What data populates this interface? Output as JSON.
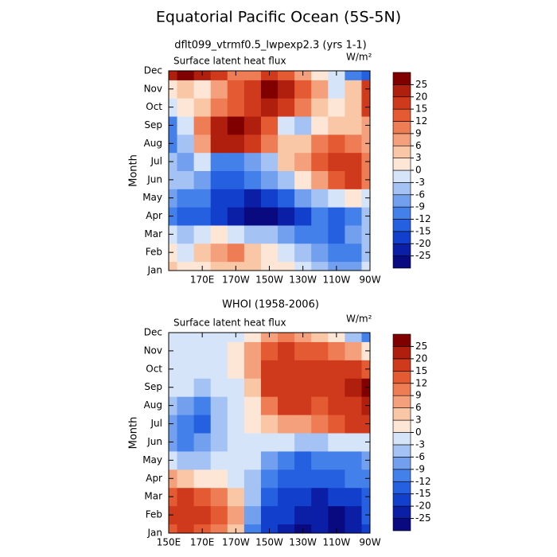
{
  "chart_data": [
    {
      "type": "heatmap",
      "title": "Equatorial Pacific Ocean (5S-5N)",
      "subtitle": "dflt099_vtrmf0.5_lwpexp2.3 (yrs 1-1)",
      "label": "Surface latent heat flux",
      "units": "W/m²",
      "ylabel": "Month",
      "categories": [
        "Jan",
        "Feb",
        "Mar",
        "Apr",
        "May",
        "Jun",
        "Jul",
        "Aug",
        "Sep",
        "Oct",
        "Nov",
        "Dec"
      ],
      "x": [
        150,
        160,
        170,
        180,
        190,
        200,
        210,
        220,
        230,
        240,
        250,
        260,
        270
      ],
      "xlim": [
        150,
        270
      ],
      "xticks": [
        {
          "value": 170,
          "label": "170E"
        },
        {
          "value": 190,
          "label": "170W"
        },
        {
          "value": 210,
          "label": "150W"
        },
        {
          "value": 230,
          "label": "130W"
        },
        {
          "value": 250,
          "label": "110W"
        },
        {
          "value": 270,
          "label": "90W"
        }
      ],
      "levels": [
        -25,
        -20,
        -15,
        -12,
        -9,
        -6,
        -3,
        0,
        3,
        6,
        9,
        12,
        15,
        20,
        25
      ],
      "colors": [
        "#0a0a80",
        "#0a1fa6",
        "#1240cc",
        "#2460e0",
        "#4480ea",
        "#72a0ee",
        "#a4c2f4",
        "#d6e4fa",
        "#fde6d6",
        "#f9c6a6",
        "#f4a07c",
        "#ee7c54",
        "#e45a32",
        "#d03a1c",
        "#b01e0e",
        "#800000"
      ],
      "z": [
        [
          3,
          0,
          2,
          3,
          5,
          3,
          2,
          0,
          -3,
          -6,
          -9,
          -9,
          -3
        ],
        [
          0,
          -3,
          3,
          6,
          9,
          3,
          0,
          -3,
          -6,
          -9,
          -12,
          -12,
          -6
        ],
        [
          -3,
          -6,
          -3,
          0,
          -3,
          -6,
          -6,
          -9,
          -12,
          -12,
          -15,
          -9,
          -6
        ],
        [
          -12,
          -15,
          -15,
          -18,
          -22,
          -26,
          -26,
          -24,
          -20,
          -12,
          -15,
          -12,
          -6
        ],
        [
          -9,
          -12,
          -12,
          -18,
          -20,
          -22,
          -20,
          -15,
          -9,
          -6,
          -3,
          0,
          -3
        ],
        [
          -6,
          -6,
          -9,
          -15,
          -15,
          -12,
          -9,
          -6,
          0,
          6,
          12,
          15,
          9
        ],
        [
          -6,
          -9,
          -3,
          -12,
          -12,
          -9,
          -6,
          3,
          6,
          12,
          15,
          15,
          9
        ],
        [
          -12,
          -6,
          6,
          20,
          22,
          15,
          9,
          3,
          3,
          9,
          12,
          9,
          6
        ],
        [
          -12,
          -3,
          9,
          22,
          26,
          20,
          12,
          -3,
          -6,
          0,
          3,
          3,
          6
        ],
        [
          -3,
          0,
          3,
          9,
          12,
          15,
          20,
          15,
          9,
          3,
          0,
          3,
          15
        ],
        [
          0,
          3,
          0,
          6,
          12,
          15,
          26,
          20,
          12,
          6,
          -3,
          3,
          15
        ],
        [
          24,
          26,
          20,
          15,
          9,
          9,
          15,
          12,
          6,
          0,
          -3,
          -12,
          -15
        ]
      ]
    },
    {
      "type": "heatmap",
      "subtitle": "WHOI (1958-2006)",
      "label": "Surface latent heat flux",
      "units": "W/m²",
      "ylabel": "Month",
      "categories": [
        "Jan",
        "Feb",
        "Mar",
        "Apr",
        "May",
        "Jun",
        "Jul",
        "Aug",
        "Sep",
        "Oct",
        "Nov",
        "Dec"
      ],
      "x": [
        150,
        160,
        170,
        180,
        190,
        200,
        210,
        220,
        230,
        240,
        250,
        260,
        270
      ],
      "xlim": [
        150,
        270
      ],
      "xticks": [
        {
          "value": 150,
          "label": "150E"
        },
        {
          "value": 170,
          "label": "170E"
        },
        {
          "value": 190,
          "label": "170W"
        },
        {
          "value": 210,
          "label": "150W"
        },
        {
          "value": 230,
          "label": "130W"
        },
        {
          "value": 250,
          "label": "110W"
        },
        {
          "value": 270,
          "label": "90W"
        }
      ],
      "levels": [
        -25,
        -20,
        -15,
        -12,
        -9,
        -6,
        -3,
        0,
        3,
        6,
        9,
        12,
        15,
        20,
        25
      ],
      "colors": [
        "#0a0a80",
        "#0a1fa6",
        "#1240cc",
        "#2460e0",
        "#4480ea",
        "#72a0ee",
        "#a4c2f4",
        "#d6e4fa",
        "#fde6d6",
        "#f9c6a6",
        "#f4a07c",
        "#ee7c54",
        "#e45a32",
        "#d03a1c",
        "#b01e0e",
        "#800000"
      ],
      "z": [
        [
          12,
          15,
          12,
          9,
          3,
          -12,
          -20,
          -22,
          -26,
          -25,
          -26,
          -24,
          -20
        ],
        [
          15,
          18,
          15,
          12,
          6,
          -9,
          -18,
          -20,
          -24,
          -22,
          -26,
          -24,
          -15
        ],
        [
          12,
          15,
          12,
          9,
          3,
          -6,
          -15,
          -18,
          -20,
          -22,
          -20,
          -18,
          -15
        ],
        [
          6,
          3,
          0,
          0,
          -3,
          -6,
          -12,
          -15,
          -15,
          -15,
          -15,
          -12,
          -12
        ],
        [
          -3,
          -6,
          -6,
          -3,
          -3,
          -3,
          -9,
          -12,
          -15,
          -12,
          -12,
          -12,
          -9
        ],
        [
          -9,
          -12,
          -9,
          -6,
          -3,
          -3,
          -3,
          -3,
          -6,
          -6,
          -3,
          -3,
          -3
        ],
        [
          -9,
          -12,
          -15,
          -6,
          -3,
          0,
          3,
          6,
          6,
          9,
          12,
          15,
          18
        ],
        [
          -6,
          -9,
          -12,
          -6,
          -3,
          0,
          9,
          15,
          15,
          12,
          15,
          18,
          20
        ],
        [
          -3,
          -3,
          -6,
          -3,
          -3,
          3,
          15,
          18,
          18,
          15,
          15,
          20,
          25
        ],
        [
          -3,
          -3,
          -3,
          -3,
          0,
          6,
          15,
          18,
          15,
          15,
          18,
          15,
          12
        ],
        [
          -3,
          -3,
          -3,
          -3,
          0,
          6,
          12,
          15,
          12,
          12,
          9,
          6,
          0
        ],
        [
          -3,
          -3,
          -3,
          -3,
          -3,
          0,
          6,
          9,
          6,
          3,
          0,
          -6,
          -12
        ]
      ]
    }
  ]
}
